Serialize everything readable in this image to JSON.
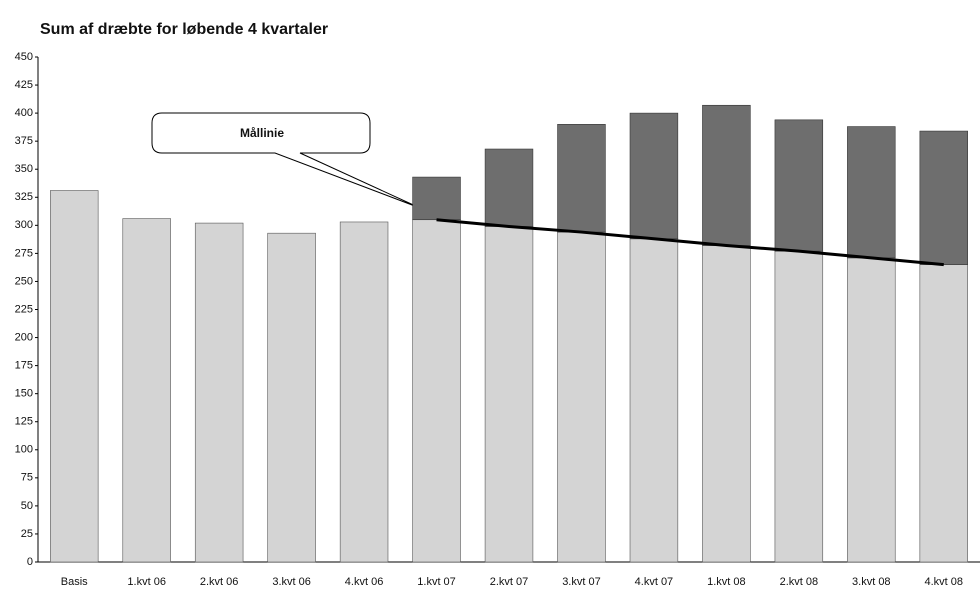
{
  "chart_data": {
    "type": "bar",
    "title": "Sum af dræbte for løbende 4 kvartaler",
    "categories": [
      "Basis",
      "1.kvt 06",
      "2.kvt 06",
      "3.kvt 06",
      "4.kvt 06",
      "1.kvt 07",
      "2.kvt 07",
      "3.kvt 07",
      "4.kvt 07",
      "1.kvt 08",
      "2.kvt 08",
      "3.kvt 08",
      "4.kvt 08"
    ],
    "values": [
      331,
      306,
      302,
      293,
      303,
      343,
      368,
      390,
      400,
      407,
      394,
      388,
      384
    ],
    "color": "#d4d4d4",
    "above_target_color": "#6e6e6e",
    "target": {
      "name": "Mållinie",
      "color": "#000000",
      "values": [
        null,
        null,
        null,
        null,
        null,
        305,
        299,
        294,
        288,
        282,
        277,
        271,
        265
      ]
    },
    "ylim": [
      0,
      450
    ],
    "yticks": [
      0,
      25,
      50,
      75,
      100,
      125,
      150,
      175,
      200,
      225,
      250,
      275,
      300,
      325,
      350,
      375,
      400,
      425,
      450
    ]
  }
}
